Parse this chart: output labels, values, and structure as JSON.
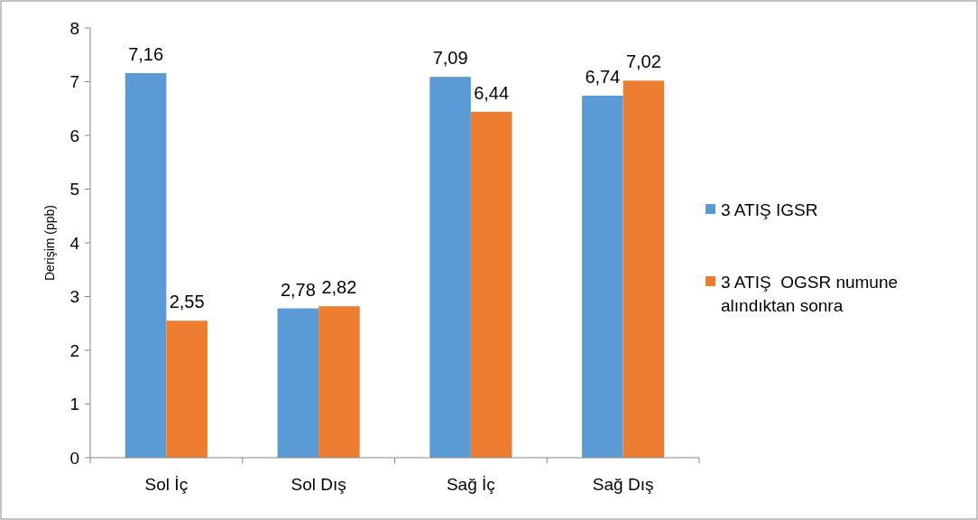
{
  "chart_data": {
    "type": "bar",
    "ylabel": "Derişim (ppb)",
    "categories": [
      "Sol İç",
      "Sol Dış",
      "Sağ İç",
      "Sağ Dış"
    ],
    "series": [
      {
        "name": "3 ATIŞ IGSR",
        "color": "#5b9bd5",
        "values": [
          7.16,
          2.78,
          7.09,
          6.74
        ],
        "value_labels": [
          "7,16",
          "2,78",
          "7,09",
          "6,74"
        ]
      },
      {
        "name": "3 ATIŞ  OGSR numune alındıktan sonra",
        "color": "#ed7d31",
        "values": [
          2.55,
          2.82,
          6.44,
          7.02
        ],
        "value_labels": [
          "2,55",
          "2,82",
          "6,44",
          "7,02"
        ]
      }
    ],
    "ylim": [
      0,
      8
    ],
    "yticks": [
      0,
      1,
      2,
      3,
      4,
      5,
      6,
      7,
      8
    ],
    "legend": "right",
    "grid": false
  }
}
